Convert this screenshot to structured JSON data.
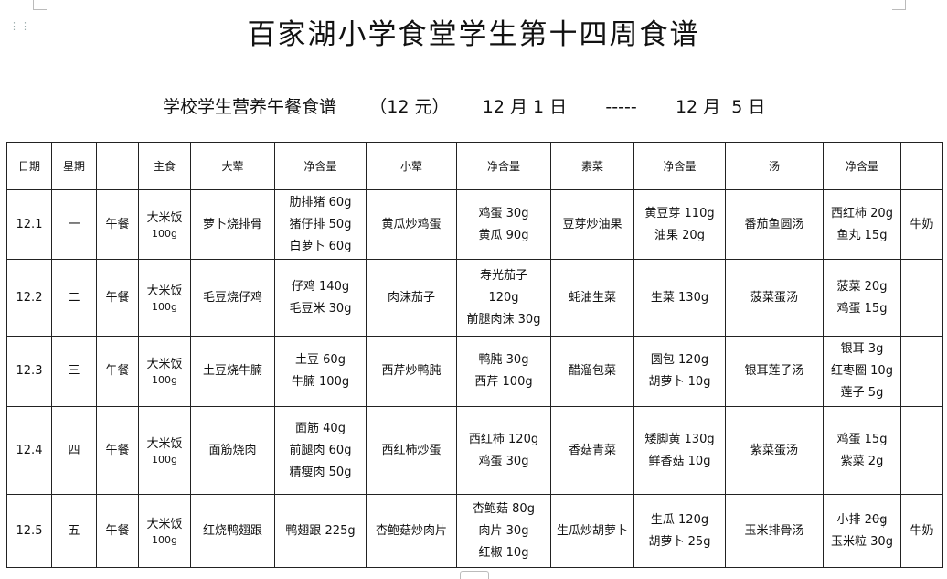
{
  "title": "百家湖小学食堂学生第十四周食谱",
  "subtitle": {
    "name": "学校学生营养午餐食谱",
    "price": "（12 元）",
    "start": "12 月 1 日",
    "dash": "-----",
    "end": "12 月  5 日"
  },
  "headers": [
    "日期",
    "星期",
    "",
    "主食",
    "大荤",
    "净含量",
    "小荤",
    "净含量",
    "素菜",
    "净含量",
    "汤",
    "净含量",
    ""
  ],
  "rows": [
    {
      "date": "12.1",
      "weekday": "一",
      "meal": "午餐",
      "staple": "大米饭",
      "staple_weight": "100g",
      "main": "萝卜烧排骨",
      "main_qty": [
        "肋排猪 60g",
        "猪仔排 50g",
        "白萝卜 60g"
      ],
      "side": "黄瓜炒鸡蛋",
      "side_qty": [
        "鸡蛋 30g",
        "黄瓜 90g"
      ],
      "veg": "豆芽炒油果",
      "veg_qty": [
        "黄豆芽 110g",
        "油果 20g"
      ],
      "soup": "番茄鱼圆汤",
      "soup_qty": [
        "西红柿 20g",
        "鱼丸 15g"
      ],
      "extra": "牛奶"
    },
    {
      "date": "12.2",
      "weekday": "二",
      "meal": "午餐",
      "staple": "大米饭",
      "staple_weight": "100g",
      "main": "毛豆烧仔鸡",
      "main_qty": [
        "仔鸡 140g",
        "毛豆米 30g"
      ],
      "side": "肉沫茄子",
      "side_qty": [
        "寿光茄子",
        "120g",
        "前腿肉沫 30g"
      ],
      "veg": "蚝油生菜",
      "veg_qty": [
        "生菜 130g"
      ],
      "soup": "菠菜蛋汤",
      "soup_qty": [
        "菠菜 20g",
        "鸡蛋 15g"
      ],
      "extra": ""
    },
    {
      "date": "12.3",
      "weekday": "三",
      "meal": "午餐",
      "staple": "大米饭",
      "staple_weight": "100g",
      "main": "土豆烧牛腩",
      "main_qty": [
        "土豆 60g",
        "牛腩 100g"
      ],
      "side": "西芹炒鸭肫",
      "side_qty": [
        "鸭肫 30g",
        "西芹 100g"
      ],
      "veg": "醋溜包菜",
      "veg_qty": [
        "圆包 120g",
        "胡萝卜 10g"
      ],
      "soup": "银耳莲子汤",
      "soup_qty": [
        "银耳 3g",
        "红枣圈 10g",
        "莲子 5g"
      ],
      "extra": ""
    },
    {
      "date": "12.4",
      "weekday": "四",
      "meal": "午餐",
      "staple": "大米饭",
      "staple_weight": "100g",
      "main": "面筋烧肉",
      "main_qty": [
        "面筋 40g",
        "前腿肉 60g",
        "精瘦肉 50g"
      ],
      "side": "西红柿炒蛋",
      "side_qty": [
        "西红柿 120g",
        "鸡蛋 30g"
      ],
      "veg": "香菇青菜",
      "veg_qty": [
        "矮脚黄 130g",
        "鲜香菇 10g"
      ],
      "soup": "紫菜蛋汤",
      "soup_qty": [
        "鸡蛋 15g",
        "紫菜 2g"
      ],
      "extra": ""
    },
    {
      "date": "12.5",
      "weekday": "五",
      "meal": "午餐",
      "staple": "大米饭",
      "staple_weight": "100g",
      "main": "红烧鸭翅跟",
      "main_qty": [
        "鸭翅跟 225g"
      ],
      "side": "杏鲍菇炒肉片",
      "side_qty": [
        "杏鲍菇 80g",
        "肉片 30g",
        "红椒 10g"
      ],
      "veg": "生瓜炒胡萝卜",
      "veg_qty": [
        "生瓜 120g",
        "胡萝卜 25g"
      ],
      "soup": "玉米排骨汤",
      "soup_qty": [
        "小排 20g",
        "玉米粒 30g"
      ],
      "extra": "牛奶"
    }
  ]
}
